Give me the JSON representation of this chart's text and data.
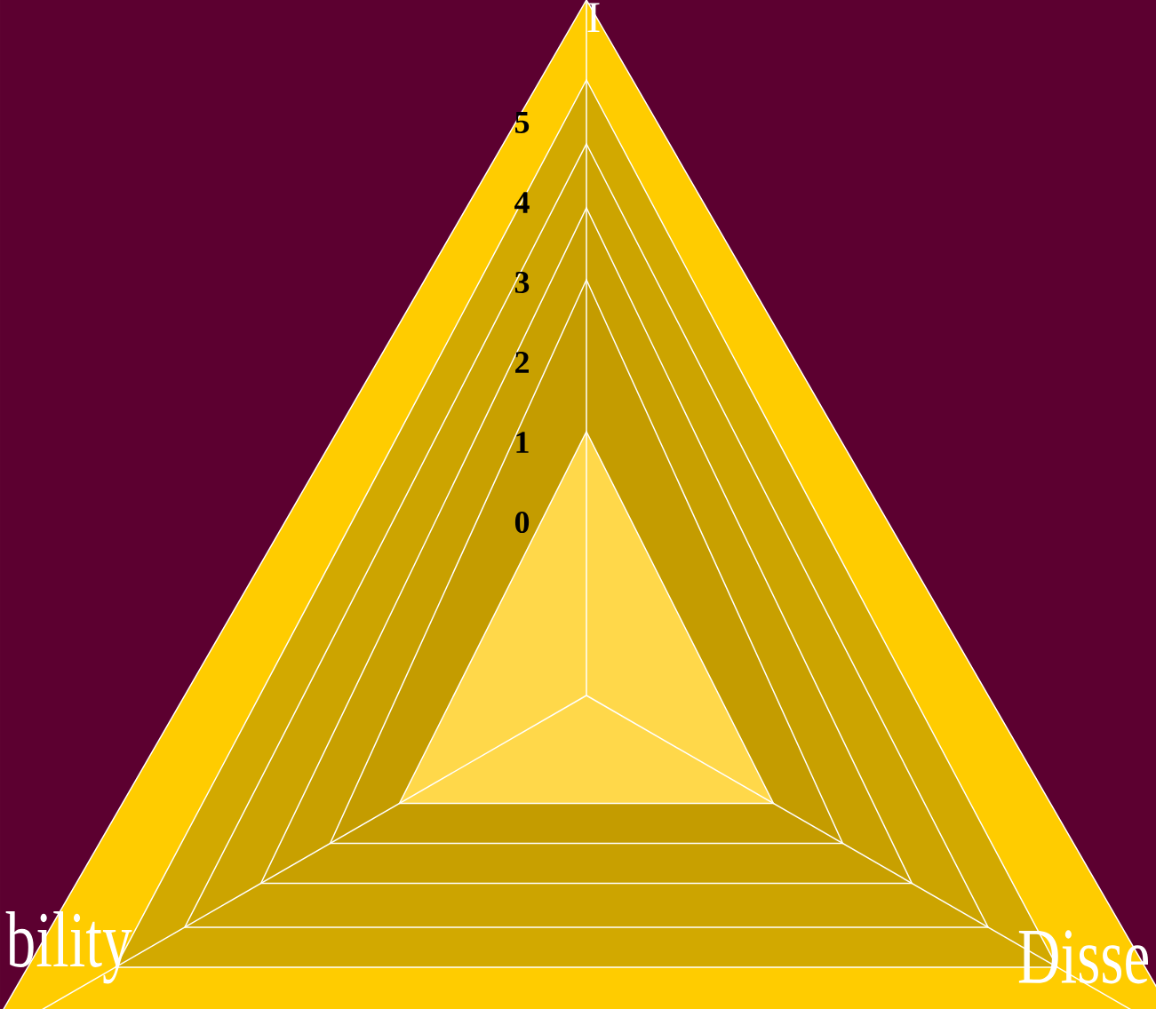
{
  "chart_data": {
    "type": "radar",
    "categories": [
      "I",
      "Disse",
      "bility"
    ],
    "ylim": [
      -2.3,
      6.4
    ],
    "yticks": [
      0,
      1,
      2,
      3,
      4,
      5
    ],
    "grid": true,
    "series": [
      {
        "color": "#d2a900",
        "values": [
          5.4,
          4.5,
          4.5
        ]
      },
      {
        "color": "#cca400",
        "values": [
          4.6,
          3.5,
          3.5
        ]
      },
      {
        "color": "#c8a000",
        "values": [
          3.8,
          2.4,
          2.4
        ]
      },
      {
        "color": "#c49c00",
        "values": [
          2.9,
          1.4,
          1.4
        ]
      },
      {
        "color": "#ffd84a",
        "values": [
          1.0,
          0.4,
          0.4
        ]
      }
    ]
  }
}
